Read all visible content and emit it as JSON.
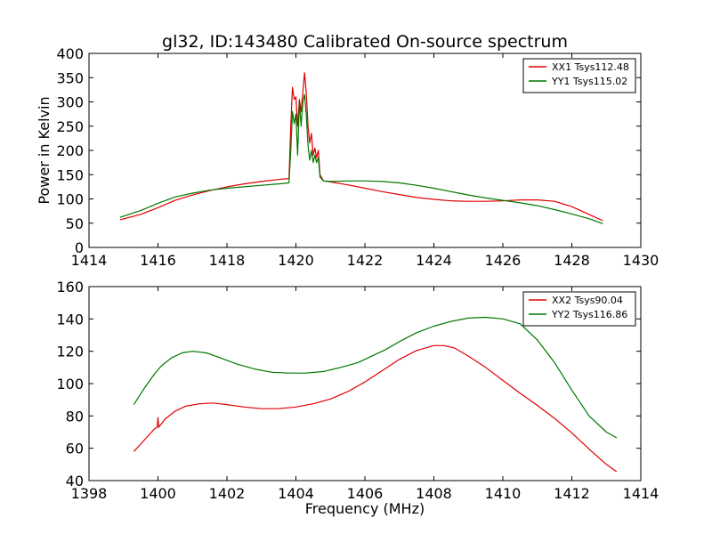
{
  "title": "gl32, ID:143480 Calibrated On-source spectrum",
  "chart_data": [
    {
      "type": "line",
      "ylabel": "Power in Kelvin",
      "xlabel": "",
      "xlim": [
        1414,
        1430
      ],
      "ylim": [
        0,
        400
      ],
      "xticks": [
        1414,
        1416,
        1418,
        1420,
        1422,
        1424,
        1426,
        1428,
        1430
      ],
      "yticks": [
        0,
        50,
        100,
        150,
        200,
        250,
        300,
        350,
        400
      ],
      "legend_position": "top-right",
      "series": [
        {
          "name": "XX1 Tsys112.48",
          "color": "#e00000",
          "x": [
            1414.9,
            1415.5,
            1416,
            1416.5,
            1417,
            1417.5,
            1418,
            1418.5,
            1419,
            1419.5,
            1419.8,
            1419.85,
            1419.9,
            1419.95,
            1420.0,
            1420.05,
            1420.1,
            1420.15,
            1420.2,
            1420.25,
            1420.3,
            1420.35,
            1420.4,
            1420.45,
            1420.5,
            1420.55,
            1420.6,
            1420.65,
            1420.7,
            1420.8,
            1421,
            1421.5,
            1422,
            1422.5,
            1423,
            1423.5,
            1424,
            1424.5,
            1425,
            1425.5,
            1426,
            1426.5,
            1427,
            1427.5,
            1428,
            1428.5,
            1428.9
          ],
          "y": [
            57,
            68,
            82,
            97,
            108,
            117,
            125,
            131,
            136,
            140,
            142,
            250,
            330,
            305,
            310,
            250,
            305,
            280,
            320,
            360,
            320,
            250,
            215,
            235,
            190,
            205,
            185,
            200,
            150,
            137,
            135,
            129,
            122,
            115,
            109,
            103,
            99,
            96,
            95,
            95,
            96,
            98,
            98,
            95,
            84,
            68,
            55
          ]
        },
        {
          "name": "YY1 Tsys115.02",
          "color": "#007700",
          "x": [
            1414.9,
            1415.5,
            1416,
            1416.5,
            1417,
            1417.5,
            1418,
            1418.5,
            1419,
            1419.5,
            1419.8,
            1419.85,
            1419.9,
            1419.95,
            1420.0,
            1420.05,
            1420.1,
            1420.15,
            1420.2,
            1420.25,
            1420.3,
            1420.35,
            1420.4,
            1420.45,
            1420.5,
            1420.55,
            1420.6,
            1420.65,
            1420.7,
            1420.8,
            1421,
            1421.5,
            1422,
            1422.5,
            1423,
            1423.5,
            1424,
            1424.5,
            1425,
            1425.5,
            1426,
            1426.5,
            1427,
            1427.5,
            1428,
            1428.5,
            1428.9
          ],
          "y": [
            62,
            76,
            91,
            104,
            112,
            118,
            122,
            125,
            128,
            131,
            133,
            200,
            280,
            255,
            275,
            190,
            300,
            250,
            300,
            315,
            275,
            210,
            180,
            200,
            175,
            190,
            175,
            185,
            145,
            137,
            136,
            137,
            137,
            136,
            133,
            128,
            122,
            115,
            108,
            102,
            97,
            92,
            86,
            78,
            69,
            59,
            49
          ]
        }
      ]
    },
    {
      "type": "line",
      "ylabel": "",
      "xlabel": "Frequency (MHz)",
      "xlim": [
        1398,
        1414
      ],
      "ylim": [
        40,
        160
      ],
      "xticks": [
        1398,
        1400,
        1402,
        1404,
        1406,
        1408,
        1410,
        1412,
        1414
      ],
      "yticks": [
        40,
        60,
        80,
        100,
        120,
        140,
        160
      ],
      "legend_position": "top-right",
      "series": [
        {
          "name": "XX2 Tsys90.04",
          "color": "#e00000",
          "x": [
            1399.3,
            1399.6,
            1399.9,
            1399.98,
            1400.0,
            1400.02,
            1400.2,
            1400.5,
            1400.8,
            1401.2,
            1401.6,
            1402,
            1402.5,
            1403,
            1403.5,
            1404,
            1404.5,
            1405,
            1405.5,
            1406,
            1406.5,
            1407,
            1407.5,
            1408,
            1408.3,
            1408.6,
            1409,
            1409.5,
            1410,
            1410.5,
            1411,
            1411.5,
            1412,
            1412.5,
            1413,
            1413.3
          ],
          "y": [
            58,
            65,
            72,
            73,
            79,
            73,
            78,
            83,
            86,
            87.5,
            88,
            87,
            85.5,
            84.5,
            84.5,
            85.5,
            87.5,
            90.5,
            95,
            101,
            108,
            115,
            120.5,
            123.5,
            123.5,
            122,
            117,
            110,
            102,
            94,
            86.5,
            78.5,
            69.5,
            59.5,
            50,
            45.5
          ]
        },
        {
          "name": "YY2 Tsys116.86",
          "color": "#007700",
          "x": [
            1399.3,
            1399.6,
            1399.9,
            1400.1,
            1400.4,
            1400.7,
            1401,
            1401.4,
            1401.8,
            1402.3,
            1402.8,
            1403.3,
            1403.8,
            1404.3,
            1404.8,
            1405.3,
            1405.8,
            1406.2,
            1406.6,
            1407,
            1407.5,
            1408,
            1408.5,
            1409,
            1409.5,
            1410,
            1410.5,
            1411,
            1411.5,
            1412,
            1412.5,
            1413,
            1413.3
          ],
          "y": [
            87,
            97,
            106,
            111,
            116,
            119,
            120,
            119,
            116,
            112,
            109,
            107,
            106.5,
            106.5,
            107.5,
            110,
            113,
            117,
            121,
            126,
            131.5,
            135.5,
            138.5,
            140.5,
            141,
            140,
            137,
            127,
            113,
            96,
            80,
            70,
            66.5
          ]
        }
      ]
    }
  ]
}
